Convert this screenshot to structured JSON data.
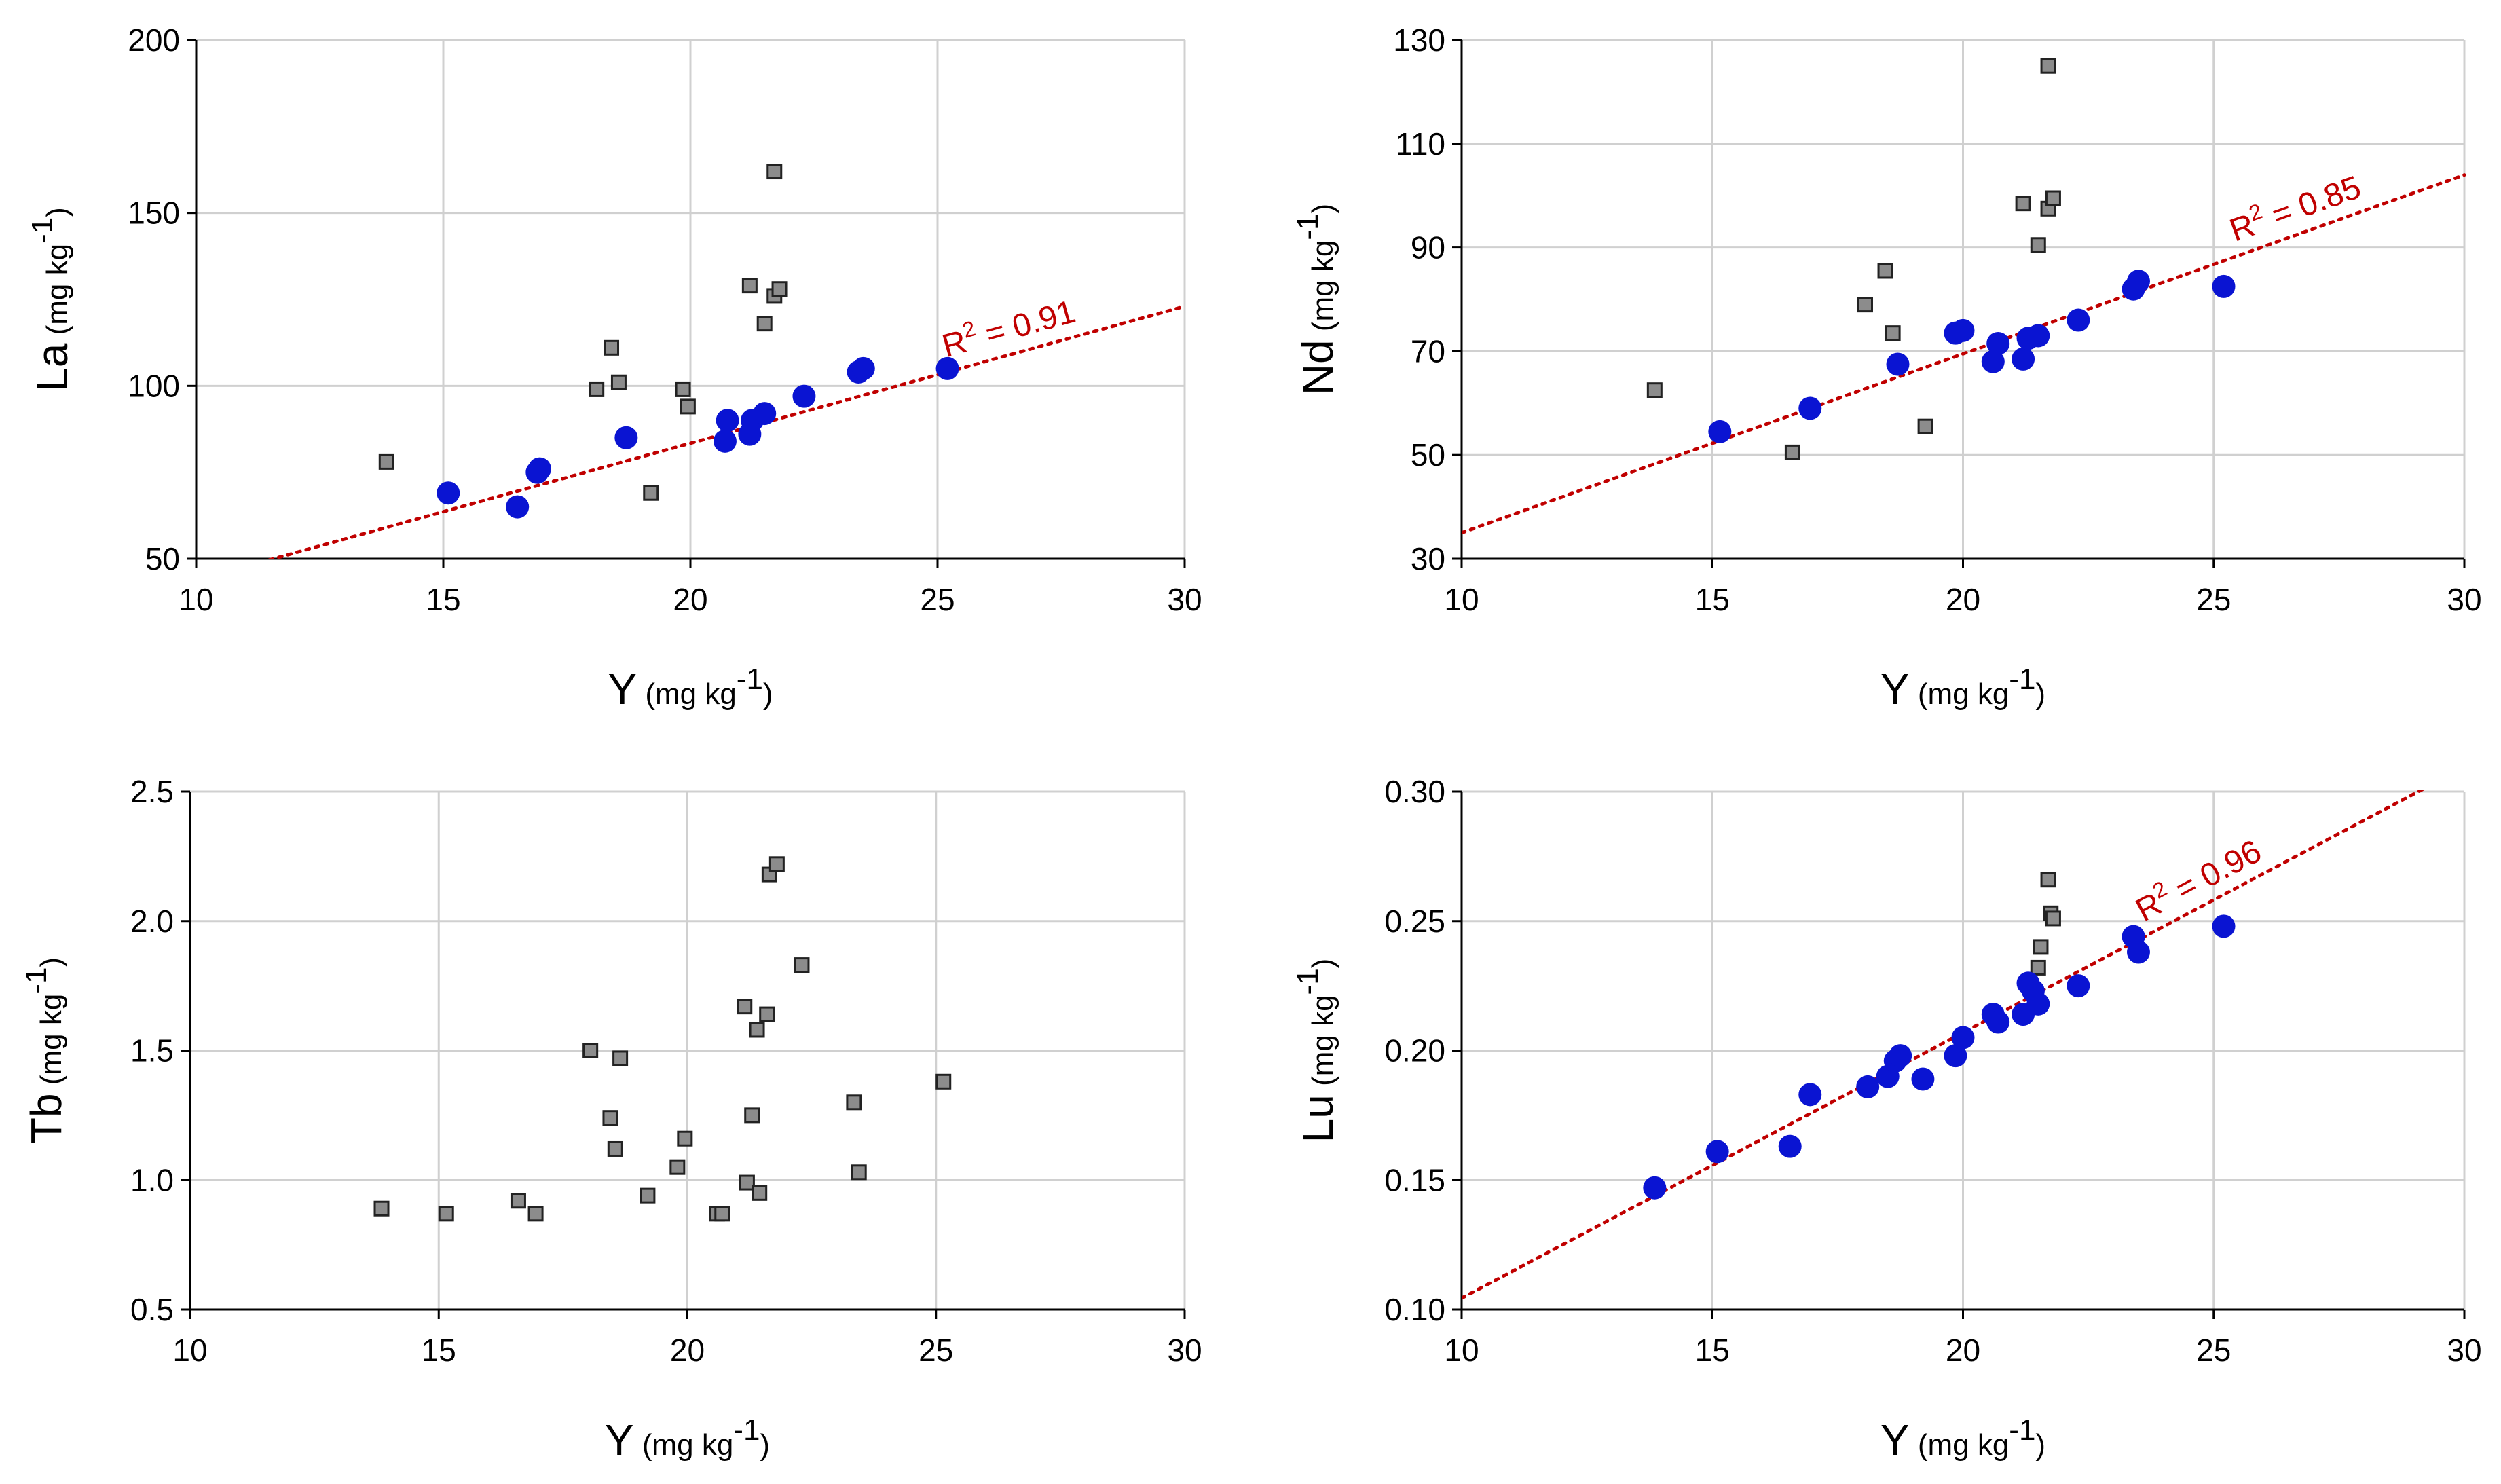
{
  "colors": {
    "fit_line": "#c00000",
    "circle_fill": "#0a14d2",
    "square_fill": "#8c8c8c",
    "square_stroke": "#222222",
    "grid": "#d0d0d0",
    "axis": "#000000"
  },
  "chart_data": [
    {
      "id": "la",
      "type": "scatter",
      "title": "",
      "xlabel": {
        "main": "Y",
        "unit": "(mg kg",
        "sup": "-1",
        "close": ")"
      },
      "ylabel": {
        "main": "La",
        "unit": "(mg kg",
        "sup": "-1",
        "close": ")"
      },
      "xlim": [
        10,
        30
      ],
      "ylim": [
        50,
        200
      ],
      "xticks": [
        10,
        15,
        20,
        25,
        30
      ],
      "yticks": [
        50,
        100,
        150,
        200
      ],
      "xtick_labels": [
        "10",
        "15",
        "20",
        "25",
        "30"
      ],
      "ytick_labels": [
        "50",
        "100",
        "150",
        "200"
      ],
      "grid": true,
      "series": [
        {
          "name": "circles",
          "marker": "circle",
          "x": [
            15.1,
            16.5,
            16.9,
            16.95,
            18.7,
            20.7,
            20.75,
            21.2,
            21.25,
            21.5,
            22.3,
            23.4,
            23.5,
            25.2
          ],
          "y": [
            69,
            65,
            75,
            76,
            85,
            84,
            90,
            86,
            90,
            92,
            97,
            104,
            105,
            105
          ]
        },
        {
          "name": "squares",
          "marker": "square",
          "x": [
            13.85,
            18.1,
            18.4,
            18.55,
            19.2,
            19.85,
            19.95,
            21.2,
            21.5,
            21.7,
            21.7,
            21.8
          ],
          "y": [
            78,
            99,
            111,
            101,
            69,
            99,
            94,
            129,
            118,
            126,
            162,
            128
          ]
        }
      ],
      "fit": {
        "type": "linear",
        "slope": 3.96,
        "intercept": 4.2,
        "x_range": [
          10,
          30
        ],
        "label_prefix": "R",
        "label_sup": "2",
        "label_suffix": " = 0.91"
      }
    },
    {
      "id": "nd",
      "type": "scatter",
      "title": "",
      "xlabel": {
        "main": "Y",
        "unit": "(mg kg",
        "sup": "-1",
        "close": ")"
      },
      "ylabel": {
        "main": "Nd",
        "unit": "(mg kg",
        "sup": "-1",
        "close": ")"
      },
      "xlim": [
        10,
        30
      ],
      "ylim": [
        30,
        130
      ],
      "xticks": [
        10,
        15,
        20,
        25,
        30
      ],
      "yticks": [
        30,
        50,
        70,
        90,
        110,
        130
      ],
      "xtick_labels": [
        "10",
        "15",
        "20",
        "25",
        "30"
      ],
      "ytick_labels": [
        "30",
        "50",
        "70",
        "90",
        "110",
        "130"
      ],
      "grid": true,
      "series": [
        {
          "name": "circles",
          "marker": "circle",
          "x": [
            15.15,
            16.95,
            18.7,
            19.85,
            20.0,
            20.6,
            20.7,
            21.2,
            21.3,
            21.5,
            22.3,
            23.4,
            23.5,
            25.2
          ],
          "y": [
            54.5,
            59,
            67.5,
            73.5,
            74,
            68,
            71.5,
            68.5,
            72.5,
            73,
            76,
            82,
            83.5,
            82.5
          ]
        },
        {
          "name": "squares",
          "marker": "square",
          "x": [
            13.85,
            16.6,
            18.05,
            18.45,
            18.6,
            19.25,
            21.2,
            21.5,
            21.7,
            21.7,
            21.8
          ],
          "y": [
            62.5,
            50.5,
            79,
            85.5,
            73.5,
            55.5,
            98.5,
            90.5,
            97.5,
            125,
            99.5
          ]
        }
      ],
      "fit": {
        "type": "linear",
        "slope": 3.45,
        "intercept": 0.5,
        "x_range": [
          10,
          30
        ],
        "label_prefix": "R",
        "label_sup": "2",
        "label_suffix": " = 0.85"
      }
    },
    {
      "id": "tb",
      "type": "scatter",
      "title": "",
      "xlabel": {
        "main": "Y",
        "unit": "(mg kg",
        "sup": "-1",
        "close": ")"
      },
      "ylabel": {
        "main": "Tb",
        "unit": "(mg kg",
        "sup": "-1",
        "close": ")"
      },
      "xlim": [
        10,
        30
      ],
      "ylim": [
        0.5,
        2.5
      ],
      "xticks": [
        10,
        15,
        20,
        25,
        30
      ],
      "yticks": [
        0.5,
        1.0,
        1.5,
        2.0,
        2.5
      ],
      "xtick_labels": [
        "10",
        "15",
        "20",
        "25",
        "30"
      ],
      "ytick_labels": [
        "0.5",
        "1.0",
        "1.5",
        "2.0",
        "2.5"
      ],
      "grid": true,
      "series": [
        {
          "name": "squares",
          "marker": "square",
          "x": [
            13.85,
            15.15,
            16.6,
            16.95,
            18.05,
            18.45,
            18.55,
            18.65,
            19.2,
            19.8,
            19.95,
            20.6,
            20.7,
            21.15,
            21.2,
            21.3,
            21.4,
            21.45,
            21.6,
            21.65,
            21.8,
            22.3,
            23.35,
            23.45,
            25.15
          ],
          "y": [
            0.89,
            0.87,
            0.92,
            0.87,
            1.5,
            1.24,
            1.12,
            1.47,
            0.94,
            1.05,
            1.16,
            0.87,
            0.87,
            1.67,
            0.99,
            1.25,
            1.58,
            0.95,
            1.64,
            2.18,
            2.22,
            1.83,
            1.3,
            1.03,
            1.38
          ]
        }
      ]
    },
    {
      "id": "lu",
      "type": "scatter",
      "title": "",
      "xlabel": {
        "main": "Y",
        "unit": "(mg kg",
        "sup": "-1",
        "close": ")"
      },
      "ylabel": {
        "main": "Lu",
        "unit": "(mg kg",
        "sup": "-1",
        "close": ")"
      },
      "xlim": [
        10,
        30
      ],
      "ylim": [
        0.1,
        0.3
      ],
      "xticks": [
        10,
        15,
        20,
        25,
        30
      ],
      "yticks": [
        0.1,
        0.15,
        0.2,
        0.25,
        0.3
      ],
      "xtick_labels": [
        "10",
        "15",
        "20",
        "25",
        "30"
      ],
      "ytick_labels": [
        "0.10",
        "0.15",
        "0.20",
        "0.25",
        "0.30"
      ],
      "grid": true,
      "series": [
        {
          "name": "circles",
          "marker": "circle",
          "x": [
            13.85,
            15.1,
            16.55,
            16.95,
            18.1,
            18.5,
            18.65,
            18.75,
            19.2,
            19.85,
            20.0,
            20.6,
            20.7,
            21.2,
            21.3,
            21.4,
            21.5,
            22.3,
            23.4,
            23.5,
            25.2
          ],
          "y": [
            0.147,
            0.161,
            0.163,
            0.183,
            0.186,
            0.19,
            0.196,
            0.198,
            0.189,
            0.198,
            0.205,
            0.214,
            0.211,
            0.214,
            0.226,
            0.223,
            0.218,
            0.225,
            0.244,
            0.238,
            0.248
          ]
        },
        {
          "name": "squares",
          "marker": "square",
          "x": [
            21.5,
            21.55,
            21.7,
            21.75,
            21.8
          ],
          "y": [
            0.232,
            0.24,
            0.266,
            0.253,
            0.251
          ]
        }
      ],
      "fit": {
        "type": "linear",
        "slope": 0.01025,
        "intercept": 0.0019,
        "x_range": [
          10,
          30
        ],
        "label_prefix": "R",
        "label_sup": "2",
        "label_suffix": " = 0.96"
      }
    }
  ]
}
